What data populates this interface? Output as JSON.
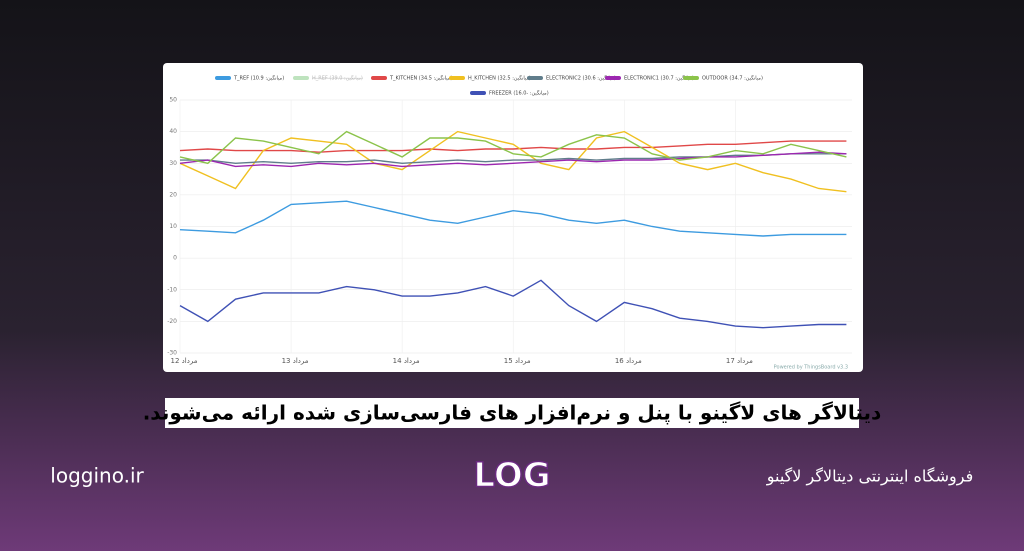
{
  "chart_data": {
    "type": "line",
    "x": [
      12,
      12.25,
      12.5,
      12.75,
      13,
      13.25,
      13.5,
      13.75,
      14,
      14.25,
      14.5,
      14.75,
      15,
      15.25,
      15.5,
      15.75,
      16,
      16.25,
      16.5,
      16.75,
      17,
      17.25,
      17.5,
      17.75,
      18
    ],
    "xlim": [
      12,
      18.05
    ],
    "xticks": [
      {
        "value": 12,
        "label": "12 مرداد"
      },
      {
        "value": 13,
        "label": "13 مرداد"
      },
      {
        "value": 14,
        "label": "14 مرداد"
      },
      {
        "value": 15,
        "label": "15 مرداد"
      },
      {
        "value": 16,
        "label": "16 مرداد"
      },
      {
        "value": 17,
        "label": "17 مرداد"
      }
    ],
    "ylim": [
      -30,
      50
    ],
    "yticks": [
      -30,
      -20,
      -10,
      0,
      10,
      20,
      30,
      40,
      50
    ],
    "grid": true,
    "credit": "Powered by ThingsBoard v3.3",
    "series": [
      {
        "name": "T_REF (میانگین: 10.9)",
        "color": "#3d9be0",
        "values": [
          9,
          8.5,
          8,
          12,
          17,
          17.5,
          18,
          16,
          14,
          12,
          11,
          13,
          15,
          14,
          12,
          11,
          12,
          10,
          8.5,
          8,
          7.5,
          7,
          7.5,
          7.5,
          7.5
        ]
      },
      {
        "name": "H_REF (میانگین: 39.0)",
        "color": "#5cb85c",
        "hidden": true
      },
      {
        "name": "T_KITCHEN (میانگین: 34.5)",
        "color": "#e04848",
        "values": [
          34,
          34.5,
          34,
          34,
          34,
          33.5,
          34,
          34,
          34,
          34.5,
          34,
          34.5,
          34.5,
          35,
          34.5,
          34.5,
          35,
          35,
          35.5,
          36,
          36,
          36.5,
          37,
          37,
          37
        ]
      },
      {
        "name": "H_KITCHEN (میانگین: 32.5)",
        "color": "#f0c020",
        "values": [
          30,
          26,
          22,
          34,
          38,
          37,
          36,
          30,
          28,
          34,
          40,
          38,
          36,
          30,
          28,
          38,
          40,
          35,
          30,
          28,
          30,
          27,
          25,
          22,
          21
        ]
      },
      {
        "name": "ELECTRONIC2 (میانگین: 30.6)",
        "color": "#607d8b",
        "values": [
          31,
          31,
          30,
          30.5,
          30,
          30.5,
          30.5,
          31,
          30,
          30.5,
          31,
          30.5,
          31,
          31,
          31.5,
          31,
          31.5,
          31.5,
          32,
          32,
          32.5,
          32.5,
          33,
          33,
          33
        ]
      },
      {
        "name": "ELECTRONIC1 (میانگین: 30.7)",
        "color": "#9c27b0",
        "values": [
          30,
          31,
          29,
          29.5,
          29,
          30,
          29.5,
          30,
          29,
          29.5,
          30,
          29.5,
          30,
          30.5,
          31,
          30.5,
          31,
          31,
          31.5,
          32,
          32,
          32.5,
          33,
          33.5,
          33
        ]
      },
      {
        "name": "OUTDOOR (میانگین: 34.7)",
        "color": "#8bc34a",
        "values": [
          32,
          30,
          38,
          37,
          35,
          33,
          40,
          36,
          32,
          38,
          38,
          37,
          33,
          32,
          36,
          39,
          38,
          33,
          31,
          32,
          34,
          33,
          36,
          34,
          32
        ]
      },
      {
        "name": "FREEZER (میانگین: -16.0)",
        "color": "#3f51b5",
        "values": [
          -15,
          -20,
          -13,
          -11,
          -11,
          -11,
          -9,
          -10,
          -12,
          -12,
          -11,
          -9,
          -12,
          -7,
          -15,
          -20,
          -14,
          -16,
          -19,
          -20,
          -21.5,
          -22,
          -21.5,
          -21,
          -21
        ]
      }
    ]
  },
  "banner": {
    "headline": "دیتالاگر های لاگینو با پنل و نرم‌افزار های فارسی‌سازی شده ارائه می‌شوند.",
    "site": "loggino.ir",
    "logo": "LOG",
    "store": "فروشگاه اینترنتی دیتالاگر لاگینو"
  }
}
